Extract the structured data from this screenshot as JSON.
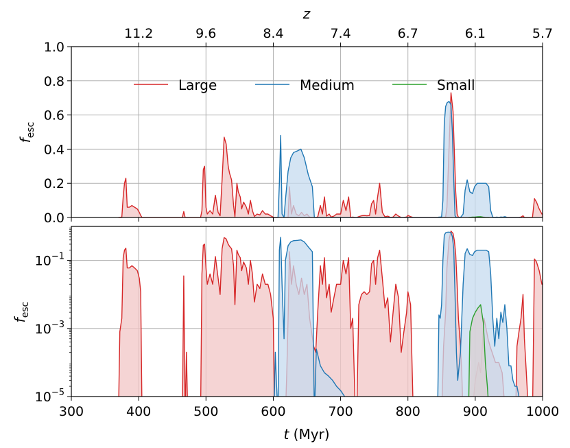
{
  "chart_data": {
    "type": "area",
    "top_axis": {
      "label": "z",
      "tick_positions_myr": [
        400,
        500,
        600,
        700,
        800,
        900,
        1000
      ],
      "tick_labels": [
        "11.2",
        "9.6",
        "8.4",
        "7.4",
        "6.7",
        "6.1",
        "5.7"
      ]
    },
    "xlabel": "t (Myr)",
    "xlabel_var": "t",
    "xlabel_unit": " (Myr)",
    "xlim": [
      300,
      1000
    ],
    "xticks": [
      300,
      400,
      500,
      600,
      700,
      800,
      900,
      1000
    ],
    "xtick_labels": [
      "300",
      "400",
      "500",
      "600",
      "700",
      "800",
      "900",
      "1000"
    ],
    "grid": true,
    "legend_placement": "upper-center",
    "panels": [
      {
        "scale": "linear",
        "ylabel": "fesc",
        "ylabel_main": "f",
        "ylabel_sub": "esc",
        "ylim": [
          0,
          1
        ],
        "yticks": [
          0,
          0.2,
          0.4,
          0.6,
          0.8,
          1.0
        ],
        "ytick_labels": [
          "0.0",
          "0.2",
          "0.4",
          "0.6",
          "0.8",
          "1.0"
        ]
      },
      {
        "scale": "log",
        "ylabel": "fesc",
        "ylabel_main": "f",
        "ylabel_sub": "esc",
        "ylim": [
          1e-05,
          1
        ],
        "yticks": [
          1e-05,
          0.001,
          0.1
        ],
        "ytick_base": [
          "10",
          "10",
          "10"
        ],
        "ytick_exp": [
          "−5",
          "−3",
          "−1"
        ]
      }
    ],
    "series": [
      {
        "name": "Large",
        "color": "#d62728",
        "fill": "#f2c6c6",
        "points": [
          [
            370,
            0
          ],
          [
            372,
            0.0008
          ],
          [
            375,
            0.002
          ],
          [
            377,
            0.12
          ],
          [
            379,
            0.2
          ],
          [
            381,
            0.23
          ],
          [
            383,
            0.06
          ],
          [
            386,
            0.06
          ],
          [
            390,
            0.07
          ],
          [
            394,
            0.06
          ],
          [
            398,
            0.05
          ],
          [
            401,
            0.03
          ],
          [
            403,
            0.012
          ],
          [
            405,
            0
          ],
          [
            424,
            0
          ],
          [
            426,
            0.0
          ],
          [
            465,
            0
          ],
          [
            467,
            0.035
          ],
          [
            469,
            0
          ],
          [
            471,
            0.0002
          ],
          [
            473,
            0.0
          ],
          [
            490,
            0
          ],
          [
            492,
            0.0
          ],
          [
            494,
            0.04
          ],
          [
            496,
            0.28
          ],
          [
            498,
            0.3
          ],
          [
            500,
            0.06
          ],
          [
            502,
            0.02
          ],
          [
            506,
            0.04
          ],
          [
            510,
            0.02
          ],
          [
            514,
            0.13
          ],
          [
            518,
            0.03
          ],
          [
            521,
            0.01
          ],
          [
            524,
            0.22
          ],
          [
            527,
            0.47
          ],
          [
            530,
            0.43
          ],
          [
            533,
            0.3
          ],
          [
            535,
            0.26
          ],
          [
            538,
            0.22
          ],
          [
            541,
            0.07
          ],
          [
            543,
            0.005
          ],
          [
            546,
            0.2
          ],
          [
            548,
            0.15
          ],
          [
            551,
            0.12
          ],
          [
            553,
            0.05
          ],
          [
            556,
            0.09
          ],
          [
            560,
            0.06
          ],
          [
            563,
            0.02
          ],
          [
            566,
            0.1
          ],
          [
            569,
            0.04
          ],
          [
            572,
            0.006
          ],
          [
            576,
            0.02
          ],
          [
            580,
            0.015
          ],
          [
            584,
            0.04
          ],
          [
            588,
            0.02
          ],
          [
            592,
            0.02
          ],
          [
            596,
            0.01
          ],
          [
            600,
            0.002
          ],
          [
            602,
            0.0
          ],
          [
            618,
            0
          ],
          [
            620,
            5e-05
          ],
          [
            622,
            0.002
          ],
          [
            624,
            0.18
          ],
          [
            627,
            0.02
          ],
          [
            630,
            0.07
          ],
          [
            634,
            0.02
          ],
          [
            638,
            0.01
          ],
          [
            642,
            0.03
          ],
          [
            646,
            0.01
          ],
          [
            650,
            0.02
          ],
          [
            654,
            0.002
          ],
          [
            660,
            0.0003
          ],
          [
            663,
            0.0002
          ],
          [
            666,
            0.003
          ],
          [
            670,
            0.07
          ],
          [
            673,
            0.02
          ],
          [
            676,
            0.12
          ],
          [
            679,
            0.008
          ],
          [
            683,
            0.02
          ],
          [
            686,
            0.003
          ],
          [
            690,
            0.008
          ],
          [
            694,
            0.02
          ],
          [
            700,
            0.02
          ],
          [
            704,
            0.1
          ],
          [
            708,
            0.04
          ],
          [
            712,
            0.12
          ],
          [
            715,
            0.001
          ],
          [
            718,
            0.002
          ],
          [
            722,
            0.0
          ],
          [
            724,
            0.0
          ],
          [
            727,
            0.005
          ],
          [
            731,
            0.01
          ],
          [
            735,
            0.012
          ],
          [
            739,
            0.01
          ],
          [
            743,
            0.012
          ],
          [
            746,
            0.08
          ],
          [
            749,
            0.1
          ],
          [
            752,
            0.02
          ],
          [
            755,
            0.12
          ],
          [
            758,
            0.2
          ],
          [
            762,
            0.03
          ],
          [
            766,
            0.004
          ],
          [
            770,
            0.008
          ],
          [
            774,
            0.0004
          ],
          [
            778,
            0.003
          ],
          [
            782,
            0.02
          ],
          [
            786,
            0.008
          ],
          [
            790,
            0.0002
          ],
          [
            794,
            0.0008
          ],
          [
            798,
            0.003
          ],
          [
            800,
            0.012
          ],
          [
            804,
            0.005
          ],
          [
            808,
            0.0
          ],
          [
            812,
            0
          ],
          [
            850,
            0
          ],
          [
            853,
            0.0003
          ],
          [
            856,
            0.003
          ],
          [
            858,
            0.06
          ],
          [
            861,
            0.4
          ],
          [
            864,
            0.73
          ],
          [
            867,
            0.62
          ],
          [
            869,
            0.38
          ],
          [
            871,
            0.15
          ],
          [
            873,
            0.02
          ],
          [
            875,
            0.002
          ],
          [
            878,
            0.0003
          ],
          [
            880,
            5e-05
          ],
          [
            882,
            0.0
          ],
          [
            895,
            0
          ],
          [
            900,
            3e-05
          ],
          [
            905,
            0.0001
          ],
          [
            908,
            5e-05
          ],
          [
            913,
            0.002
          ],
          [
            916,
            0.001
          ],
          [
            919,
            0.0005
          ],
          [
            922,
            0.0003
          ],
          [
            925,
            0.0002
          ],
          [
            930,
            0.0001
          ],
          [
            935,
            0.0001
          ],
          [
            940,
            5e-05
          ],
          [
            945,
            0.0
          ],
          [
            960,
            0
          ],
          [
            962,
            0.0003
          ],
          [
            965,
            0.0008
          ],
          [
            968,
            0.002
          ],
          [
            971,
            0.01
          ],
          [
            973,
            0.0005
          ],
          [
            975,
            0.0001
          ],
          [
            977,
            2e-05
          ],
          [
            979,
            0.0
          ],
          [
            985,
            0
          ],
          [
            988,
            0.11
          ],
          [
            991,
            0.09
          ],
          [
            995,
            0.05
          ],
          [
            999,
            0.02
          ],
          [
            1000,
            0.02
          ]
        ]
      },
      {
        "name": "Medium",
        "color": "#1f77b4",
        "fill": "#c6dbef",
        "points": [
          [
            601,
            0
          ],
          [
            603,
            0.0002
          ],
          [
            605,
            2e-05
          ],
          [
            607,
            0.0
          ],
          [
            609,
            0.2
          ],
          [
            611,
            0.48
          ],
          [
            613,
            0.02
          ],
          [
            616,
            0.0005
          ],
          [
            618,
            0.1
          ],
          [
            622,
            0.27
          ],
          [
            626,
            0.35
          ],
          [
            630,
            0.38
          ],
          [
            636,
            0.39
          ],
          [
            641,
            0.4
          ],
          [
            646,
            0.35
          ],
          [
            652,
            0.25
          ],
          [
            658,
            0.18
          ],
          [
            661,
            0.0
          ],
          [
            664,
            0.00025
          ],
          [
            670,
            8e-05
          ],
          [
            676,
            5e-05
          ],
          [
            682,
            4e-05
          ],
          [
            688,
            3e-05
          ],
          [
            694,
            2e-05
          ],
          [
            700,
            1.5e-05
          ],
          [
            706,
            1e-05
          ],
          [
            711,
            0.0
          ],
          [
            844,
            0
          ],
          [
            846,
            0.0025
          ],
          [
            848,
            0.002
          ],
          [
            850,
            0.005
          ],
          [
            852,
            0.1
          ],
          [
            854,
            0.55
          ],
          [
            856,
            0.65
          ],
          [
            858,
            0.67
          ],
          [
            861,
            0.68
          ],
          [
            864,
            0.66
          ],
          [
            866,
            0.5
          ],
          [
            868,
            0.22
          ],
          [
            870,
            0.01
          ],
          [
            872,
            0.0002
          ],
          [
            874,
            3e-05
          ],
          [
            878,
            0.0002
          ],
          [
            882,
            0.02
          ],
          [
            885,
            0.16
          ],
          [
            888,
            0.22
          ],
          [
            892,
            0.15
          ],
          [
            896,
            0.14
          ],
          [
            899,
            0.18
          ],
          [
            903,
            0.2
          ],
          [
            908,
            0.2
          ],
          [
            912,
            0.2
          ],
          [
            916,
            0.2
          ],
          [
            920,
            0.18
          ],
          [
            923,
            0.04
          ],
          [
            926,
            0.002
          ],
          [
            929,
            0.0003
          ],
          [
            932,
            0.002
          ],
          [
            935,
            0.0005
          ],
          [
            938,
            0.003
          ],
          [
            941,
            0.0015
          ],
          [
            944,
            0.005
          ],
          [
            947,
            0.001
          ],
          [
            950,
            8e-05
          ],
          [
            953,
            8e-05
          ],
          [
            956,
            3e-05
          ],
          [
            959,
            2e-05
          ],
          [
            962,
            2e-05
          ],
          [
            965,
            1e-05
          ],
          [
            968,
            0.0
          ]
        ]
      },
      {
        "name": "Small",
        "color": "#2ca02c",
        "fill": "#d9cfd2",
        "points": [
          [
            890,
            0
          ],
          [
            892,
            0.0008
          ],
          [
            896,
            0.002
          ],
          [
            900,
            0.003
          ],
          [
            904,
            0.004
          ],
          [
            908,
            0.005
          ],
          [
            912,
            0.0015
          ],
          [
            915,
            0.0001
          ],
          [
            918,
            2e-05
          ],
          [
            921,
            0.0
          ]
        ]
      }
    ]
  }
}
